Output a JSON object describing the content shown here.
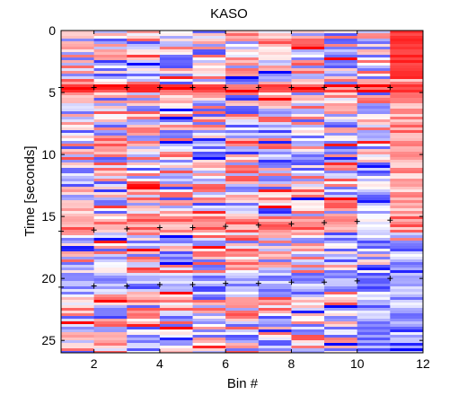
{
  "chart_data": {
    "type": "heatmap",
    "title": "KASO",
    "xlabel": "Bin #",
    "ylabel": "Time [seconds]",
    "xlim": [
      1,
      12
    ],
    "ylim": [
      26,
      0
    ],
    "x_ticks": [
      2,
      4,
      6,
      8,
      10,
      12
    ],
    "y_ticks": [
      0,
      5,
      10,
      15,
      20,
      25
    ],
    "columns": 11,
    "colormap": {
      "negative": "#0000ff",
      "zero": "#ffffff",
      "positive": "#ff0000"
    },
    "markers": {
      "symbol": "+",
      "rows": [
        {
          "x": [
            1,
            2,
            3,
            4,
            5,
            6,
            7,
            8,
            9,
            10,
            11
          ],
          "y": [
            4.6,
            4.6,
            4.6,
            4.6,
            4.6,
            4.6,
            4.6,
            4.6,
            4.6,
            4.6,
            4.6
          ]
        },
        {
          "x": [
            1,
            2,
            3,
            4,
            5,
            6,
            7,
            8,
            9,
            10,
            11
          ],
          "y": [
            16.2,
            16.1,
            16.0,
            15.9,
            15.9,
            15.8,
            15.7,
            15.6,
            15.5,
            15.4,
            15.3
          ]
        },
        {
          "x": [
            1,
            2,
            3,
            4,
            5,
            6,
            7,
            8,
            9,
            10,
            11
          ],
          "y": [
            20.7,
            20.6,
            20.6,
            20.5,
            20.5,
            20.4,
            20.4,
            20.3,
            20.3,
            20.2,
            20.0
          ]
        }
      ]
    },
    "intensity_bands": [
      {
        "t0": 0,
        "t1": 4,
        "col11": 0.95
      },
      {
        "t0": 4.3,
        "t1": 4.9,
        "all": 0.8
      },
      {
        "t0": 15.1,
        "t1": 16.4,
        "all": 0.45
      },
      {
        "t0": 19.6,
        "t1": 21.0,
        "all": -0.35
      }
    ]
  }
}
